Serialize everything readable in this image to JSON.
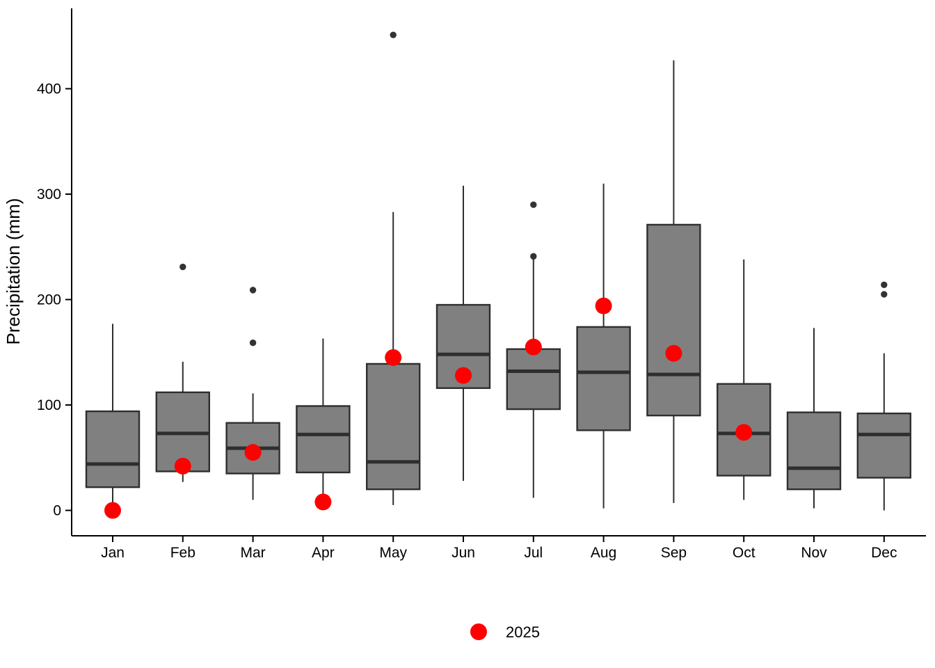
{
  "chart_data": {
    "type": "boxplot",
    "ylabel": "Precipitation (mm)",
    "xlabel": "",
    "categories": [
      "Jan",
      "Feb",
      "Mar",
      "Apr",
      "May",
      "Jun",
      "Jul",
      "Aug",
      "Sep",
      "Oct",
      "Nov",
      "Dec"
    ],
    "y_ticks": [
      0,
      100,
      200,
      300,
      400
    ],
    "ylim": [
      0,
      460
    ],
    "grid": "off",
    "legend": {
      "label": "2025",
      "marker": "red-dot",
      "position": "bottom-center"
    },
    "colors": {
      "box_fill": "#808080",
      "box_border": "#2e2e2e",
      "median": "#2e2e2e",
      "whisker": "#2e2e2e",
      "outlier": "#333333",
      "point_2025": "#ff0000",
      "axis": "#000000"
    },
    "boxes": [
      {
        "month": "Jan",
        "whisker_low": 7,
        "q1": 22,
        "median": 44,
        "q3": 94,
        "whisker_high": 177,
        "outliers": [],
        "value_2025": 0
      },
      {
        "month": "Feb",
        "whisker_low": 27,
        "q1": 37,
        "median": 73,
        "q3": 112,
        "whisker_high": 141,
        "outliers": [
          231
        ],
        "value_2025": 42
      },
      {
        "month": "Mar",
        "whisker_low": 10,
        "q1": 35,
        "median": 59,
        "q3": 83,
        "whisker_high": 111,
        "outliers": [
          159,
          209
        ],
        "value_2025": 55
      },
      {
        "month": "Apr",
        "whisker_low": 3,
        "q1": 36,
        "median": 72,
        "q3": 99,
        "whisker_high": 163,
        "outliers": [],
        "value_2025": 8
      },
      {
        "month": "May",
        "whisker_low": 5,
        "q1": 20,
        "median": 46,
        "q3": 139,
        "whisker_high": 283,
        "outliers": [
          451
        ],
        "value_2025": 145
      },
      {
        "month": "Jun",
        "whisker_low": 28,
        "q1": 116,
        "median": 148,
        "q3": 195,
        "whisker_high": 308,
        "outliers": [],
        "value_2025": 128
      },
      {
        "month": "Jul",
        "whisker_low": 12,
        "q1": 96,
        "median": 132,
        "q3": 153,
        "whisker_high": 240,
        "outliers": [
          241,
          290
        ],
        "value_2025": 155
      },
      {
        "month": "Aug",
        "whisker_low": 2,
        "q1": 76,
        "median": 131,
        "q3": 174,
        "whisker_high": 310,
        "outliers": [],
        "value_2025": 194
      },
      {
        "month": "Sep",
        "whisker_low": 7,
        "q1": 90,
        "median": 129,
        "q3": 271,
        "whisker_high": 427,
        "outliers": [],
        "value_2025": 149
      },
      {
        "month": "Oct",
        "whisker_low": 10,
        "q1": 33,
        "median": 73,
        "q3": 120,
        "whisker_high": 238,
        "outliers": [],
        "value_2025": 74
      },
      {
        "month": "Nov",
        "whisker_low": 2,
        "q1": 20,
        "median": 40,
        "q3": 93,
        "whisker_high": 173,
        "outliers": [],
        "value_2025": null
      },
      {
        "month": "Dec",
        "whisker_low": 0,
        "q1": 31,
        "median": 72,
        "q3": 92,
        "whisker_high": 149,
        "outliers": [
          205,
          214
        ],
        "value_2025": null
      }
    ]
  }
}
